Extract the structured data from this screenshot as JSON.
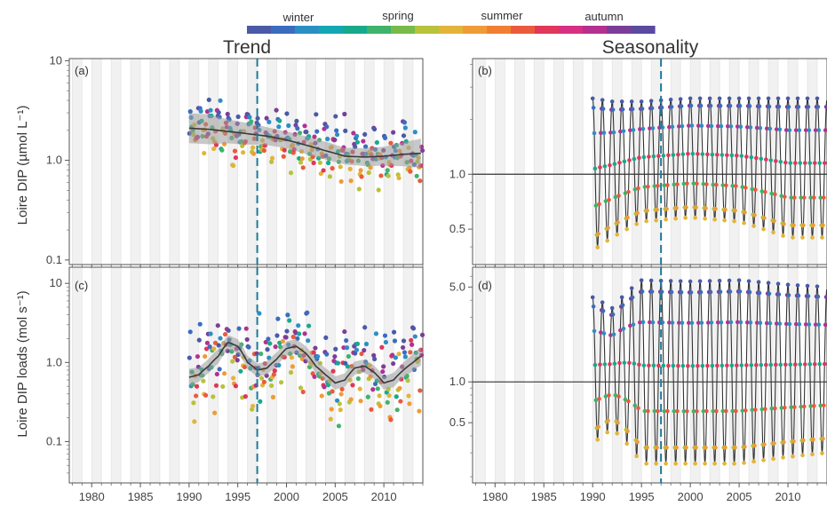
{
  "legend": {
    "labels": [
      "winter",
      "spring",
      "summer",
      "autumn"
    ],
    "colors": [
      "#4a5aa6",
      "#3a6dbf",
      "#2b8fc4",
      "#14a6b3",
      "#17a98c",
      "#3fb26b",
      "#78bb4a",
      "#b8c23a",
      "#e3b43a",
      "#ef9b38",
      "#f07f33",
      "#ea5a3d",
      "#e0375a",
      "#d72f84",
      "#b4318f",
      "#7b3e98",
      "#5a4aa0"
    ]
  },
  "titles": {
    "left": "Trend",
    "right": "Seasonality"
  },
  "panel_labels": [
    "(a)",
    "(b)",
    "(c)",
    "(d)"
  ],
  "y_labels": {
    "top": "Loire DIP (µmol L⁻¹)",
    "bottom": "Loire DIP loads (mol s⁻¹)"
  },
  "chart_data": [
    {
      "panel": "(a)",
      "type": "scatter",
      "scale": "log",
      "x_ticks": [
        1980,
        1985,
        1990,
        1995,
        2000,
        2005,
        2010
      ],
      "y_ticks": [
        {
          "v": 0.1,
          "label": "0.1"
        },
        {
          "v": 1,
          "label": "1.0"
        },
        {
          "v": 10,
          "label": "10"
        }
      ],
      "ylim": [
        0.09,
        10.5
      ],
      "vline": 1997,
      "trend": {
        "x": [
          1990,
          1992,
          1994,
          1996,
          1998,
          2000,
          2002,
          2004,
          2006,
          2008,
          2010,
          2012,
          2014
        ],
        "y": [
          2.1,
          2.05,
          1.95,
          1.85,
          1.75,
          1.6,
          1.42,
          1.25,
          1.1,
          1.08,
          1.1,
          1.15,
          1.18
        ],
        "ci": [
          0.25,
          0.25,
          0.2,
          0.18,
          0.15,
          0.14,
          0.15,
          0.15,
          0.14,
          0.15,
          0.16,
          0.2,
          0.25
        ]
      }
    },
    {
      "panel": "(b)",
      "type": "line",
      "scale": "log",
      "x_ticks": [
        1980,
        1985,
        1990,
        1995,
        2000,
        2005,
        2010
      ],
      "y_ticks": [
        {
          "v": 0.5,
          "label": "0.5"
        },
        {
          "v": 1,
          "label": "1.0"
        }
      ],
      "ylim": [
        0.32,
        4.3
      ],
      "vline": 1997,
      "seasonal_amplitude": {
        "x": [
          1990,
          1992,
          1995,
          2000,
          2005,
          2010,
          2014
        ],
        "peak": [
          2.6,
          2.5,
          2.5,
          2.6,
          2.6,
          2.6,
          2.6
        ],
        "trough": [
          0.38,
          0.45,
          0.55,
          0.58,
          0.55,
          0.45,
          0.45
        ]
      }
    },
    {
      "panel": "(c)",
      "type": "scatter",
      "scale": "log",
      "x_ticks": [
        1980,
        1985,
        1990,
        1995,
        2000,
        2005,
        2010
      ],
      "y_ticks": [
        {
          "v": 0.1,
          "label": "0.1"
        },
        {
          "v": 1,
          "label": "1.0"
        },
        {
          "v": 10,
          "label": "10"
        }
      ],
      "ylim": [
        0.03,
        16
      ],
      "vline": 1997,
      "trend": {
        "x": [
          1990,
          1991,
          1992,
          1993,
          1994,
          1995,
          1996,
          1997,
          1998,
          1999,
          2000,
          2001,
          2002,
          2003,
          2004,
          2005,
          2006,
          2007,
          2008,
          2009,
          2010,
          2011,
          2012,
          2013,
          2014
        ],
        "y": [
          0.65,
          0.7,
          0.9,
          1.2,
          1.8,
          1.6,
          1.0,
          0.8,
          0.85,
          1.1,
          1.5,
          1.6,
          1.3,
          0.9,
          0.7,
          0.55,
          0.6,
          0.85,
          0.9,
          0.75,
          0.55,
          0.6,
          0.8,
          1.0,
          1.25
        ],
        "ci": [
          0.18,
          0.15,
          0.15,
          0.15,
          0.15,
          0.15,
          0.14,
          0.14,
          0.14,
          0.14,
          0.15,
          0.15,
          0.15,
          0.14,
          0.14,
          0.14,
          0.14,
          0.14,
          0.14,
          0.14,
          0.14,
          0.15,
          0.16,
          0.18,
          0.2
        ]
      }
    },
    {
      "panel": "(d)",
      "type": "line",
      "scale": "log",
      "x_ticks": [
        1980,
        1985,
        1990,
        1995,
        2000,
        2005,
        2010
      ],
      "y_ticks": [
        {
          "v": 0.5,
          "label": "0.5"
        },
        {
          "v": 1,
          "label": "1.0"
        },
        {
          "v": 5,
          "label": "5.0"
        }
      ],
      "ylim": [
        0.18,
        7.0
      ],
      "vline": 1997,
      "seasonal_amplitude": {
        "x": [
          1990,
          1992,
          1995,
          2000,
          2005,
          2010,
          2014
        ],
        "peak": [
          4.2,
          3.5,
          5.6,
          5.5,
          5.6,
          5.2,
          5.0
        ],
        "trough": [
          0.35,
          0.45,
          0.25,
          0.25,
          0.25,
          0.28,
          0.3
        ]
      }
    }
  ]
}
